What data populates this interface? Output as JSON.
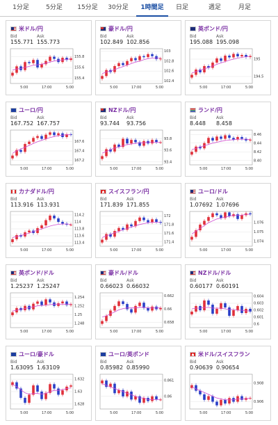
{
  "tabs": [
    {
      "label": "1分足",
      "active": false
    },
    {
      "label": "5分足",
      "active": false
    },
    {
      "label": "15分足",
      "active": false
    },
    {
      "label": "30分足",
      "active": false
    },
    {
      "label": "1時間足",
      "active": true
    },
    {
      "label": "日足",
      "active": false
    },
    {
      "label": "週足",
      "active": false
    },
    {
      "label": "月足",
      "active": false
    }
  ],
  "bid_label": "Bid",
  "ask_label": "Ask",
  "colors": {
    "up": "#e0303a",
    "down": "#2a3fc7",
    "ma": "#d14fd1",
    "active_tab": "#1a4ea3",
    "pair": "#7a2fa3"
  },
  "cards": [
    {
      "pair": "米ドル/円",
      "flag": "us",
      "bid": "155.771",
      "ask": "155.773",
      "chart_data": {
        "type": "candlestick",
        "x_ticks": [
          "5:00",
          "17:00",
          "5:00"
        ],
        "y_ticks": [
          "155.8",
          "155.6",
          "155.4"
        ],
        "ylim": [
          155.3,
          155.95
        ],
        "close": [
          155.5,
          155.62,
          155.55,
          155.7,
          155.68,
          155.74,
          155.6,
          155.66,
          155.72,
          155.8,
          155.76,
          155.7,
          155.78,
          155.74,
          155.77
        ],
        "ma": [
          155.55,
          155.57,
          155.58,
          155.6,
          155.62,
          155.64,
          155.65,
          155.66,
          155.68,
          155.7,
          155.72,
          155.73,
          155.74,
          155.75,
          155.76
        ]
      }
    },
    {
      "pair": "豪ドル/円",
      "flag": "au",
      "bid": "102.849",
      "ask": "102.856",
      "chart_data": {
        "type": "candlestick",
        "x_ticks": [
          "5:00",
          "17:00",
          "5:00"
        ],
        "y_ticks": [
          "103",
          "102.8",
          "102.6",
          "102.4"
        ],
        "ylim": [
          102.35,
          103.05
        ],
        "close": [
          102.5,
          102.62,
          102.58,
          102.7,
          102.76,
          102.72,
          102.8,
          102.86,
          102.82,
          102.9,
          102.88,
          102.94,
          102.9,
          102.84,
          102.85
        ],
        "ma": [
          102.55,
          102.58,
          102.6,
          102.63,
          102.66,
          102.69,
          102.72,
          102.75,
          102.78,
          102.8,
          102.83,
          102.85,
          102.86,
          102.86,
          102.86
        ]
      }
    },
    {
      "pair": "英ポンド/円",
      "flag": "uk",
      "bid": "195.088",
      "ask": "195.098",
      "chart_data": {
        "type": "candlestick",
        "x_ticks": [
          "5:00",
          "17:00",
          "5:00"
        ],
        "y_ticks": [
          "195",
          "194.5"
        ],
        "ylim": [
          194.3,
          195.3
        ],
        "close": [
          194.55,
          194.7,
          194.62,
          194.8,
          194.75,
          194.9,
          195.02,
          194.95,
          195.1,
          195.05,
          195.15,
          195.08,
          195.12,
          195.06,
          195.09
        ],
        "ma": [
          194.6,
          194.64,
          194.68,
          194.72,
          194.76,
          194.8,
          194.85,
          194.89,
          194.93,
          194.97,
          195.0,
          195.03,
          195.05,
          195.07,
          195.08
        ]
      }
    },
    {
      "pair": "ユーロ/円",
      "flag": "eu",
      "bid": "167.752",
      "ask": "167.757",
      "chart_data": {
        "type": "candlestick",
        "x_ticks": [
          "5:00",
          "17:00",
          "5:00"
        ],
        "y_ticks": [
          "167.6",
          "167.4",
          "167.2"
        ],
        "ylim": [
          167.1,
          167.85
        ],
        "close": [
          167.3,
          167.42,
          167.38,
          167.55,
          167.6,
          167.68,
          167.72,
          167.66,
          167.75,
          167.8,
          167.74,
          167.78,
          167.7,
          167.76,
          167.75
        ],
        "ma": [
          167.35,
          167.4,
          167.44,
          167.48,
          167.52,
          167.56,
          167.6,
          167.63,
          167.66,
          167.69,
          167.71,
          167.73,
          167.74,
          167.75,
          167.75
        ]
      }
    },
    {
      "pair": "NZドル/円",
      "flag": "nz",
      "bid": "93.744",
      "ask": "93.756",
      "chart_data": {
        "type": "candlestick",
        "x_ticks": [
          "5:00",
          "17:00",
          "5:00"
        ],
        "y_ticks": [
          "93.8",
          "93.6",
          "93.4"
        ],
        "ylim": [
          93.35,
          93.95
        ],
        "close": [
          93.5,
          93.62,
          93.58,
          93.7,
          93.66,
          93.8,
          93.72,
          93.78,
          93.74,
          93.68,
          93.76,
          93.72,
          93.78,
          93.74,
          93.74
        ],
        "ma": [
          93.55,
          93.58,
          93.61,
          93.64,
          93.66,
          93.68,
          93.7,
          93.71,
          93.72,
          93.73,
          93.73,
          93.74,
          93.74,
          93.74,
          93.74
        ]
      }
    },
    {
      "pair": "ランド/円",
      "flag": "za",
      "bid": "8.448",
      "ask": "8.458",
      "chart_data": {
        "type": "candlestick",
        "x_ticks": [
          "5:00",
          "17:00",
          "5:00"
        ],
        "y_ticks": [
          "8.46",
          "8.44",
          "8.42",
          "8.40"
        ],
        "ylim": [
          8.39,
          8.47
        ],
        "close": [
          8.42,
          8.432,
          8.428,
          8.44,
          8.452,
          8.446,
          8.455,
          8.45,
          8.458,
          8.452,
          8.448,
          8.454,
          8.45,
          8.446,
          8.448
        ],
        "ma": [
          8.425,
          8.428,
          8.431,
          8.434,
          8.437,
          8.44,
          8.442,
          8.444,
          8.446,
          8.447,
          8.448,
          8.449,
          8.449,
          8.449,
          8.448
        ]
      }
    },
    {
      "pair": "カナダドル/円",
      "flag": "ca",
      "bid": "113.916",
      "ask": "113.931",
      "chart_data": {
        "type": "candlestick",
        "x_ticks": [
          "5:00",
          "17:00",
          "5:00"
        ],
        "y_ticks": [
          "114.2",
          "114",
          "113.8",
          "113.6",
          "113.4"
        ],
        "ylim": [
          113.3,
          114.3
        ],
        "close": [
          113.5,
          113.62,
          113.58,
          113.7,
          113.75,
          113.68,
          113.82,
          113.9,
          114.05,
          114.18,
          114.1,
          114.0,
          113.95,
          113.92,
          113.92
        ],
        "ma": [
          113.55,
          113.58,
          113.61,
          113.64,
          113.68,
          113.72,
          113.76,
          113.8,
          113.84,
          113.88,
          113.91,
          113.93,
          113.94,
          113.94,
          113.93
        ]
      }
    },
    {
      "pair": "スイスフラン/円",
      "flag": "ch",
      "bid": "171.839",
      "ask": "171.855",
      "chart_data": {
        "type": "candlestick",
        "x_ticks": [
          "5:00",
          "17:00",
          "5:00"
        ],
        "y_ticks": [
          "172",
          "171.8",
          "171.6",
          "171.4"
        ],
        "ylim": [
          171.3,
          172.1
        ],
        "close": [
          171.45,
          171.58,
          171.52,
          171.65,
          171.72,
          171.68,
          171.8,
          171.76,
          171.88,
          171.96,
          171.9,
          171.85,
          171.92,
          171.86,
          171.84
        ],
        "ma": [
          171.5,
          171.54,
          171.57,
          171.61,
          171.64,
          171.68,
          171.71,
          171.74,
          171.77,
          171.8,
          171.82,
          171.84,
          171.85,
          171.85,
          171.85
        ]
      }
    },
    {
      "pair": "ユーロ/ドル",
      "flag": "us",
      "bid": "1.07692",
      "ask": "1.07696",
      "chart_data": {
        "type": "candlestick",
        "x_ticks": [
          "5:00",
          "17:00",
          "5:00"
        ],
        "y_ticks": [
          "1.076",
          "1.075",
          "1.074"
        ],
        "ylim": [
          1.0735,
          1.0772
        ],
        "close": [
          1.0745,
          1.0752,
          1.0758,
          1.0762,
          1.0766,
          1.077,
          1.0768,
          1.0765,
          1.0771,
          1.0767,
          1.0769,
          1.0764,
          1.0768,
          1.077,
          1.0769
        ],
        "ma": [
          1.0748,
          1.0751,
          1.0754,
          1.0757,
          1.076,
          1.0762,
          1.0764,
          1.0765,
          1.0766,
          1.0767,
          1.0768,
          1.0768,
          1.0768,
          1.0769,
          1.0769
        ]
      }
    },
    {
      "pair": "英ポンド/ドル",
      "flag": "us",
      "bid": "1.25237",
      "ask": "1.25247",
      "chart_data": {
        "type": "candlestick",
        "x_ticks": [
          "5:00",
          "17:00",
          "5:00"
        ],
        "y_ticks": [
          "1.254",
          "1.252",
          "1.25",
          "1.248"
        ],
        "ylim": [
          1.247,
          1.255
        ],
        "close": [
          1.2505,
          1.2515,
          1.251,
          1.252,
          1.2512,
          1.2525,
          1.253,
          1.2522,
          1.2535,
          1.2528,
          1.252,
          1.2526,
          1.253,
          1.2522,
          1.2524
        ],
        "ma": [
          1.2508,
          1.251,
          1.2512,
          1.2514,
          1.2516,
          1.2518,
          1.252,
          1.2521,
          1.2522,
          1.2523,
          1.2524,
          1.2524,
          1.2524,
          1.2524,
          1.2524
        ]
      }
    },
    {
      "pair": "豪ドル/ドル",
      "flag": "us",
      "bid": "0.66023",
      "ask": "0.66032",
      "chart_data": {
        "type": "candlestick",
        "x_ticks": [
          "5:00",
          "17:00",
          "5:00"
        ],
        "y_ticks": [
          "0.662",
          "0.66",
          "0.658"
        ],
        "ylim": [
          0.6572,
          0.6625
        ],
        "close": [
          0.6582,
          0.659,
          0.6598,
          0.6605,
          0.6612,
          0.6608,
          0.66,
          0.6595,
          0.6605,
          0.661,
          0.6602,
          0.6598,
          0.6604,
          0.66,
          0.6602
        ],
        "ma": [
          0.6588,
          0.659,
          0.6593,
          0.6596,
          0.6599,
          0.6601,
          0.6602,
          0.6602,
          0.6602,
          0.6603,
          0.6603,
          0.6602,
          0.6602,
          0.6602,
          0.6602
        ]
      }
    },
    {
      "pair": "NZドル/ドル",
      "flag": "us",
      "bid": "0.60177",
      "ask": "0.60191",
      "chart_data": {
        "type": "candlestick",
        "x_ticks": [
          "5:00",
          "17:00",
          "5:00"
        ],
        "y_ticks": [
          "0.604",
          "0.603",
          "0.602",
          "0.601",
          "0.6"
        ],
        "ylim": [
          0.5995,
          0.6045
        ],
        "close": [
          0.6018,
          0.6026,
          0.602,
          0.6034,
          0.6028,
          0.6015,
          0.6022,
          0.603,
          0.6024,
          0.6012,
          0.602,
          0.6026,
          0.6016,
          0.6022,
          0.6018
        ],
        "ma": [
          0.6022,
          0.6023,
          0.6023,
          0.6024,
          0.6024,
          0.6023,
          0.6023,
          0.6023,
          0.6022,
          0.6021,
          0.6021,
          0.602,
          0.602,
          0.6019,
          0.6019
        ]
      }
    },
    {
      "pair": "ユーロ/豪ドル",
      "flag": "eu",
      "bid": "1.63095",
      "ask": "1.63109",
      "chart_data": {
        "type": "candlestick",
        "x_ticks": [
          "5:00",
          "17:00",
          "5:00"
        ],
        "y_ticks": [
          "1.632",
          "1.63",
          "1.628"
        ],
        "ylim": [
          1.6272,
          1.6328
        ],
        "close": [
          1.6315,
          1.6305,
          1.629,
          1.6282,
          1.6295,
          1.631,
          1.63,
          1.6288,
          1.6298,
          1.6312,
          1.6305,
          1.6295,
          1.6302,
          1.6308,
          1.631
        ],
        "ma": [
          1.6312,
          1.6308,
          1.6303,
          1.6298,
          1.6296,
          1.6297,
          1.6297,
          1.6296,
          1.6297,
          1.63,
          1.6302,
          1.6302,
          1.6303,
          1.6305,
          1.6306
        ]
      }
    },
    {
      "pair": "ユーロ/英ポンド",
      "flag": "eu",
      "bid": "0.85982",
      "ask": "0.85990",
      "chart_data": {
        "type": "candlestick",
        "x_ticks": [
          "5:00",
          "17:00",
          "5:00"
        ],
        "y_ticks": [
          "0.861",
          "0.86"
        ],
        "ylim": [
          0.8592,
          0.8614
        ],
        "close": [
          0.861,
          0.8606,
          0.8608,
          0.8602,
          0.8604,
          0.86,
          0.8603,
          0.8598,
          0.86,
          0.8596,
          0.8599,
          0.8597,
          0.86,
          0.8598,
          0.8598
        ],
        "ma": [
          0.8608,
          0.8607,
          0.8606,
          0.8605,
          0.8604,
          0.8603,
          0.8602,
          0.8601,
          0.86,
          0.8599,
          0.8599,
          0.8598,
          0.8598,
          0.8598,
          0.8598
        ]
      }
    },
    {
      "pair": "米ドル/スイスフラン",
      "flag": "ch",
      "bid": "0.90639",
      "ask": "0.90654",
      "chart_data": {
        "type": "candlestick",
        "x_ticks": [
          "5:00",
          "17:00",
          "5:00"
        ],
        "y_ticks": [
          "0.908",
          "0.906"
        ],
        "ylim": [
          0.9052,
          0.909
        ],
        "close": [
          0.9078,
          0.9072,
          0.9068,
          0.9062,
          0.9066,
          0.906,
          0.9056,
          0.9062,
          0.9058,
          0.9064,
          0.906,
          0.9066,
          0.9062,
          0.9064,
          0.9064
        ],
        "ma": [
          0.9076,
          0.9074,
          0.9072,
          0.907,
          0.9068,
          0.9066,
          0.9064,
          0.9063,
          0.9062,
          0.9062,
          0.9062,
          0.9063,
          0.9063,
          0.9063,
          0.9064
        ]
      }
    }
  ]
}
